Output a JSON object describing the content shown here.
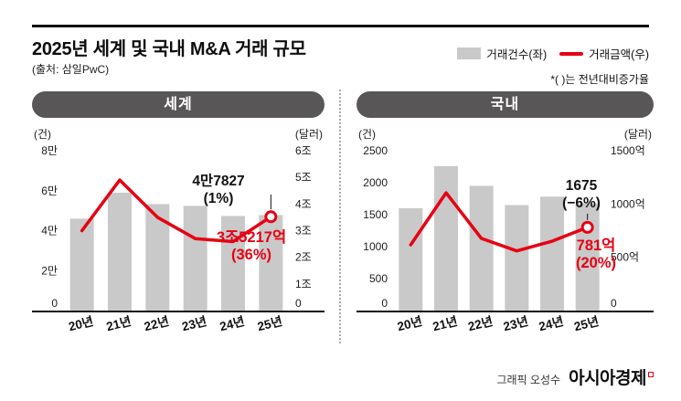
{
  "header": {
    "title": "2025년 세계 및 국내 M&A 거래 규모",
    "source": "(출처: 삼일PwC)",
    "note": "*( )는 전년대비증가율"
  },
  "legend": {
    "bars": "거래건수(좌)",
    "line": "거래금액(우)"
  },
  "colors": {
    "bar": "#c9c9c9",
    "line": "#e60012",
    "pill": "#585656",
    "axis": "#111111"
  },
  "footer": {
    "credit": "그래픽 오성수",
    "brand": "아시아경제"
  },
  "chart_data": [
    {
      "type": "bar+line",
      "title": "세계",
      "unit_left": "(건)",
      "unit_right": "(달러)",
      "categories": [
        "20년",
        "21년",
        "22년",
        "23년",
        "24년",
        "25년"
      ],
      "bar_series": {
        "name": "거래건수(좌)",
        "axis_max": 80000,
        "ticks": [
          {
            "v": 80000,
            "label": "8만"
          },
          {
            "v": 60000,
            "label": "6만"
          },
          {
            "v": 40000,
            "label": "4만"
          },
          {
            "v": 20000,
            "label": "2만"
          },
          {
            "v": 0,
            "label": "0"
          }
        ],
        "values": [
          46000,
          59000,
          53300,
          52400,
          47354,
          47827
        ]
      },
      "line_series": {
        "name": "거래금액(우)",
        "axis_max": 6,
        "ticks": [
          {
            "v": 6,
            "label": "6조"
          },
          {
            "v": 5,
            "label": "5조"
          },
          {
            "v": 4,
            "label": "4조"
          },
          {
            "v": 3,
            "label": "3조"
          },
          {
            "v": 2,
            "label": "2조"
          },
          {
            "v": 1,
            "label": "1조"
          },
          {
            "v": 0,
            "label": "0"
          }
        ],
        "values": [
          3.0,
          4.9,
          3.5,
          2.7,
          2.59,
          3.5217
        ]
      },
      "annotations": {
        "count_value": "4만7827",
        "count_change": "(1%)",
        "amount_value": "3조5217억",
        "amount_change": "(36%)"
      }
    },
    {
      "type": "bar+line",
      "title": "국내",
      "unit_left": "(건)",
      "unit_right": "(달러)",
      "categories": [
        "20년",
        "21년",
        "22년",
        "23년",
        "24년",
        "25년"
      ],
      "bar_series": {
        "name": "거래건수(좌)",
        "axis_max": 2500,
        "ticks": [
          {
            "v": 2500,
            "label": "2500"
          },
          {
            "v": 2000,
            "label": "2000"
          },
          {
            "v": 1500,
            "label": "1500"
          },
          {
            "v": 1000,
            "label": "1000"
          },
          {
            "v": 500,
            "label": "500"
          },
          {
            "v": 0,
            "label": "0"
          }
        ],
        "values": [
          1600,
          2260,
          1950,
          1650,
          1782,
          1675
        ]
      },
      "line_series": {
        "name": "거래금액(우)",
        "axis_max": 1500,
        "ticks": [
          {
            "v": 1500,
            "label": "1500억"
          },
          {
            "v": 1000,
            "label": "1000억"
          },
          {
            "v": 500,
            "label": "500억"
          },
          {
            "v": 0,
            "label": "0"
          }
        ],
        "values": [
          617,
          1105,
          677,
          560,
          651,
          781
        ]
      },
      "annotations": {
        "count_value": "1675",
        "count_change": "(−6%)",
        "amount_value": "781억",
        "amount_change": "(20%)"
      }
    }
  ]
}
